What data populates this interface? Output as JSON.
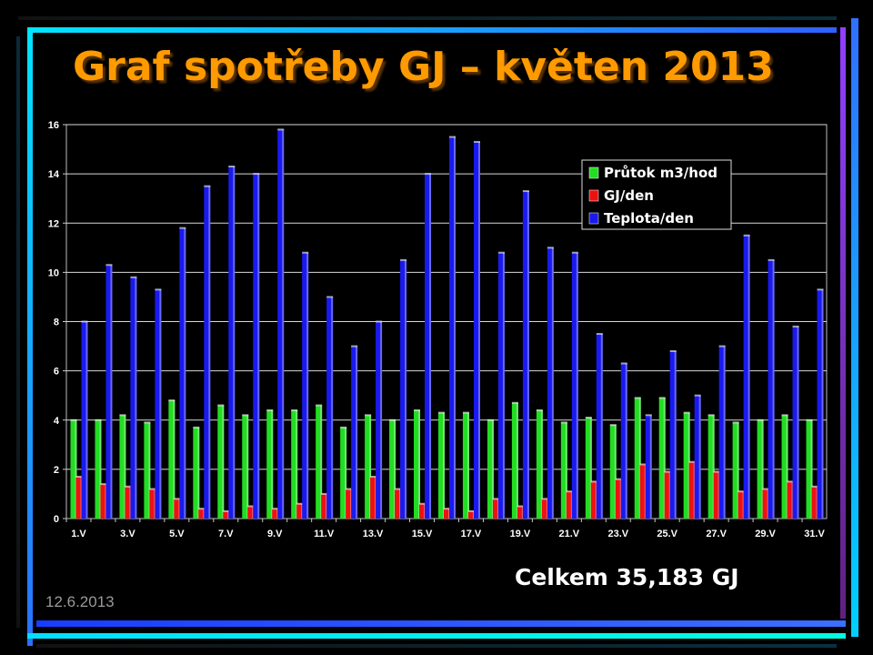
{
  "slide": {
    "title": "Graf spotřeby GJ – květen 2013",
    "total": "Celkem 35,183 GJ",
    "date": "12.6.2013"
  },
  "colors": {
    "title": "#ff9a00",
    "series_green": "#22dd22",
    "series_red": "#ee1111",
    "series_blue": "#1a1aee"
  },
  "chart_data": {
    "type": "bar",
    "categories": [
      "1.V",
      "2.V",
      "3.V",
      "4.V",
      "5.V",
      "6.V",
      "7.V",
      "8.V",
      "9.V",
      "10.V",
      "11.V",
      "12.V",
      "13.V",
      "14.V",
      "15.V",
      "16.V",
      "17.V",
      "18.V",
      "19.V",
      "20.V",
      "21.V",
      "22.V",
      "23.V",
      "24.V",
      "25.V",
      "26.V",
      "27.V",
      "28.V",
      "29.V",
      "30.V",
      "31.V"
    ],
    "tick_labels": [
      "1.V",
      "3.V",
      "5.V",
      "7.V",
      "9.V",
      "11.V",
      "13.V",
      "15.V",
      "17.V",
      "19.V",
      "21.V",
      "23.V",
      "25.V",
      "27.V",
      "29.V",
      "31.V"
    ],
    "y_ticks": [
      0,
      2,
      4,
      6,
      8,
      10,
      12,
      14,
      16
    ],
    "ylim": [
      0,
      16
    ],
    "grid": true,
    "legend_position": "top-right",
    "series": [
      {
        "name": "Průtok m3/hod",
        "color": "#22dd22",
        "values": [
          4.0,
          4.0,
          4.2,
          3.9,
          4.8,
          3.7,
          4.6,
          4.2,
          4.4,
          4.4,
          4.6,
          3.7,
          4.2,
          4.0,
          4.4,
          4.3,
          4.3,
          4.0,
          4.7,
          4.4,
          3.9,
          4.1,
          3.8,
          4.9,
          4.9,
          4.3,
          4.2,
          3.9,
          4.0,
          4.2,
          4.0
        ]
      },
      {
        "name": "GJ/den",
        "color": "#ee1111",
        "values": [
          1.7,
          1.4,
          1.3,
          1.2,
          0.8,
          0.4,
          0.3,
          0.5,
          0.4,
          0.6,
          1.0,
          1.2,
          1.7,
          1.2,
          0.6,
          0.4,
          0.3,
          0.8,
          0.5,
          0.8,
          1.1,
          1.5,
          1.6,
          2.2,
          1.9,
          2.3,
          1.9,
          1.1,
          1.2,
          1.5,
          1.3
        ]
      },
      {
        "name": "Teplota/den",
        "color": "#1a1aee",
        "values": [
          8.0,
          10.3,
          9.8,
          9.3,
          11.8,
          13.5,
          14.3,
          14.0,
          15.8,
          10.8,
          9.0,
          7.0,
          8.0,
          10.5,
          14.0,
          15.5,
          15.3,
          10.8,
          13.3,
          11.0,
          10.8,
          7.5,
          6.3,
          4.2,
          6.8,
          5.0,
          7.0,
          11.5,
          10.5,
          7.8,
          9.3
        ]
      }
    ]
  }
}
